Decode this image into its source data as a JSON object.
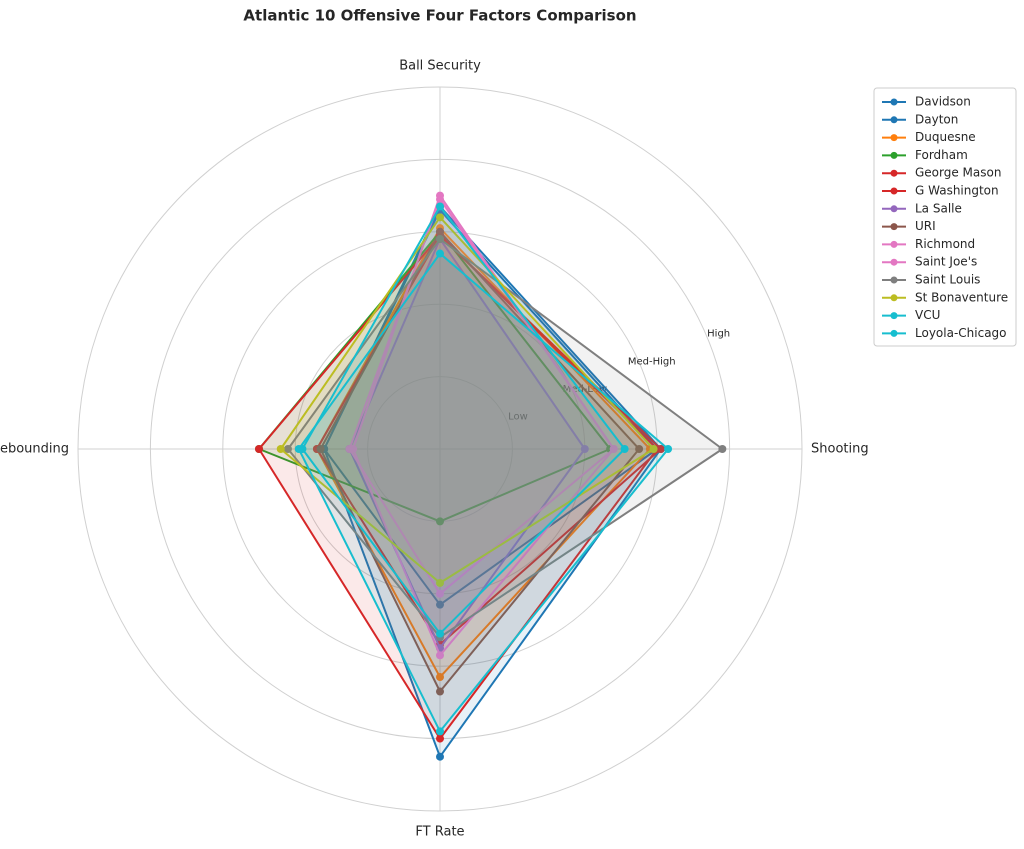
{
  "chart_data": {
    "type": "radar",
    "title": "Atlantic 10 Offensive Four Factors Comparison",
    "categories": [
      "Shooting",
      "Ball Security",
      "Off Rebounding",
      "FT Rate"
    ],
    "ylim": [
      0,
      5
    ],
    "yticks": [
      {
        "value": 1,
        "label": "Low"
      },
      {
        "value": 2,
        "label": "Med-Low"
      },
      {
        "value": 3,
        "label": "Med-High"
      },
      {
        "value": 4,
        "label": "High"
      }
    ],
    "grid": true,
    "legend": "upper right outside",
    "series": [
      {
        "name": "Davidson",
        "color": "#1f77b4",
        "values": [
          3.0,
          3.3,
          1.6,
          2.15
        ]
      },
      {
        "name": "Dayton",
        "color": "#1f77b4",
        "values": [
          3.05,
          3.35,
          1.6,
          4.25
        ]
      },
      {
        "name": "Duquesne",
        "color": "#ff7f0e",
        "values": [
          2.9,
          3.05,
          1.7,
          3.15
        ]
      },
      {
        "name": "Fordham",
        "color": "#2ca02c",
        "values": [
          2.35,
          3.0,
          2.5,
          1.0
        ]
      },
      {
        "name": "George Mason",
        "color": "#d62728",
        "values": [
          3.0,
          2.95,
          2.5,
          4.0
        ]
      },
      {
        "name": "G Washington",
        "color": "#d62728",
        "values": [
          3.05,
          2.95,
          1.7,
          2.7
        ]
      },
      {
        "name": "La Salle",
        "color": "#9467bd",
        "values": [
          2.0,
          2.9,
          1.25,
          2.75
        ]
      },
      {
        "name": "URI",
        "color": "#8c564b",
        "values": [
          2.75,
          3.0,
          1.65,
          3.35
        ]
      },
      {
        "name": "Richmond",
        "color": "#e377c2",
        "values": [
          2.4,
          3.5,
          1.2,
          2.85
        ]
      },
      {
        "name": "Saint Joe's",
        "color": "#e377c2",
        "values": [
          2.4,
          3.45,
          1.25,
          2.0
        ]
      },
      {
        "name": "Saint Louis",
        "color": "#7f7f7f",
        "values": [
          3.9,
          2.9,
          2.1,
          2.6
        ]
      },
      {
        "name": "St Bonaventure",
        "color": "#bcbd22",
        "values": [
          2.95,
          3.2,
          2.2,
          1.85
        ]
      },
      {
        "name": "VCU",
        "color": "#17becf",
        "values": [
          2.55,
          3.35,
          1.9,
          2.55
        ]
      },
      {
        "name": "Loyola-Chicago",
        "color": "#17becf",
        "values": [
          3.15,
          2.7,
          1.95,
          3.9
        ]
      }
    ]
  }
}
